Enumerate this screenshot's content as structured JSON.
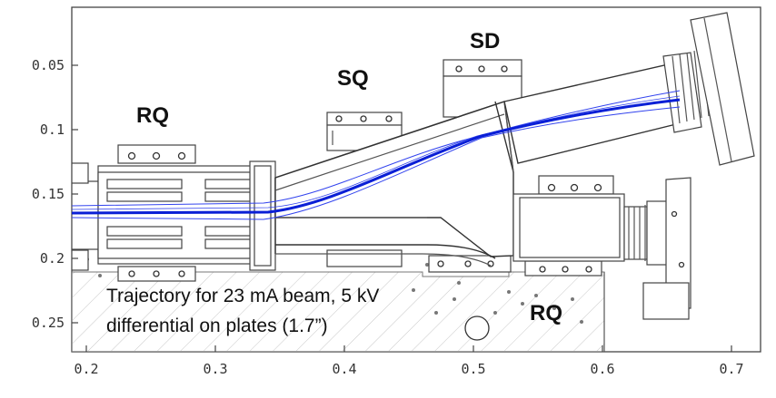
{
  "labels": {
    "rq_left": "RQ",
    "sq": "SQ",
    "sd": "SD",
    "rq_right": "RQ"
  },
  "caption": {
    "line1": "Trajectory for 23 mA beam, 5 kV",
    "line2": "differential on plates (1.7”)"
  },
  "axes": {
    "x_ticks": [
      "0.2",
      "0.3",
      "0.4",
      "0.5",
      "0.6",
      "0.7"
    ],
    "y_ticks": [
      "0.05",
      "0.1",
      "0.15",
      "0.2",
      "0.25"
    ]
  },
  "colors": {
    "beam": "#0a1fd6",
    "beam_envelope": "#3344ee",
    "hatch": "#bbbbbb"
  }
}
